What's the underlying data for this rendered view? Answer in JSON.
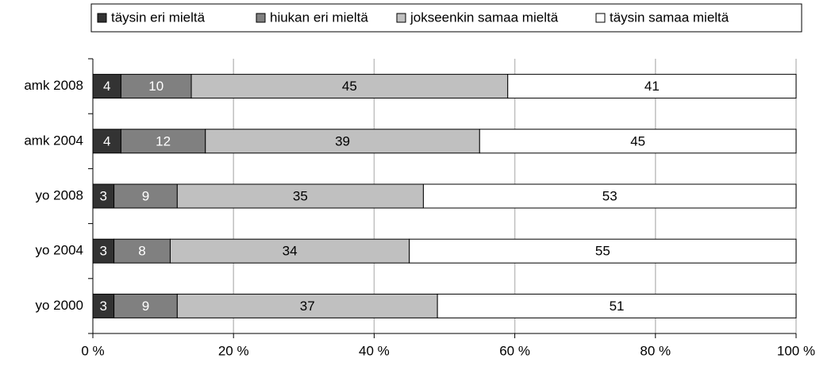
{
  "chart_data": {
    "type": "stacked-barh",
    "categories": [
      "amk 2008",
      "amk 2004",
      "yo 2008",
      "yo 2004",
      "yo 2000"
    ],
    "series": [
      {
        "name": "täysin eri mieltä",
        "color": "#333333",
        "values": [
          4,
          4,
          3,
          3,
          3
        ]
      },
      {
        "name": "hiukan eri mieltä",
        "color": "#808080",
        "values": [
          10,
          12,
          9,
          8,
          9
        ]
      },
      {
        "name": "jokseenkin samaa mieltä",
        "color": "#c0c0c0",
        "values": [
          45,
          39,
          35,
          34,
          37
        ]
      },
      {
        "name": "täysin samaa mieltä",
        "color": "#ffffff",
        "values": [
          41,
          45,
          53,
          55,
          51
        ]
      }
    ],
    "xlim": [
      0,
      100
    ],
    "xticks": [
      {
        "value": 0,
        "label": "0 %"
      },
      {
        "value": 20,
        "label": "20 %"
      },
      {
        "value": 40,
        "label": "40 %"
      },
      {
        "value": 60,
        "label": "60 %"
      },
      {
        "value": 80,
        "label": "80 %"
      },
      {
        "value": 100,
        "label": "100 %"
      }
    ],
    "grid": true,
    "legend": "top"
  }
}
